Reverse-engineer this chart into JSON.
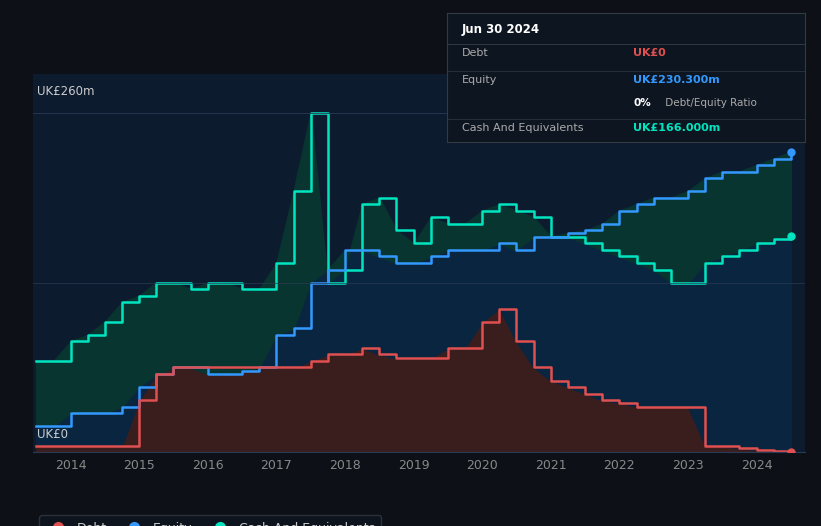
{
  "bg_color": "#0d1117",
  "plot_bg_color": "#0d1b2e",
  "grid_color": "#1e3050",
  "ylabel_top": "UK£260m",
  "ylabel_bottom": "UK£0",
  "xlabel_years": [
    2014,
    2015,
    2016,
    2017,
    2018,
    2019,
    2020,
    2021,
    2022,
    2023,
    2024
  ],
  "debt_color": "#e05050",
  "equity_color": "#3399ff",
  "cash_color": "#00e5c0",
  "debt_fill": "#3a1e1e",
  "equity_fill": "#0a2540",
  "cash_fill": "#083530",
  "tooltip": {
    "date": "Jun 30 2024",
    "debt_label": "Debt",
    "debt_value": "UK£0",
    "debt_color": "#e05050",
    "equity_label": "Equity",
    "equity_value": "UK£230.300m",
    "equity_color": "#3399ff",
    "ratio_text": "0%",
    "ratio_label": " Debt/Equity Ratio",
    "cash_label": "Cash And Equivalents",
    "cash_value": "UK£166.000m",
    "cash_color": "#00e5c0",
    "bg": "#0d1520",
    "border": "#333a44",
    "text_color": "#aaaaaa"
  },
  "legend": {
    "debt_label": "Debt",
    "equity_label": "Equity",
    "cash_label": "Cash And Equivalents"
  },
  "years": [
    2013.5,
    2013.75,
    2014.0,
    2014.25,
    2014.5,
    2014.75,
    2015.0,
    2015.25,
    2015.5,
    2015.75,
    2016.0,
    2016.25,
    2016.5,
    2016.75,
    2017.0,
    2017.25,
    2017.5,
    2017.75,
    2018.0,
    2018.25,
    2018.5,
    2018.75,
    2019.0,
    2019.25,
    2019.5,
    2019.75,
    2020.0,
    2020.25,
    2020.5,
    2020.75,
    2021.0,
    2021.25,
    2021.5,
    2021.75,
    2022.0,
    2022.25,
    2022.5,
    2022.75,
    2023.0,
    2023.25,
    2023.5,
    2023.75,
    2024.0,
    2024.25,
    2024.5
  ],
  "debt": [
    5,
    5,
    5,
    5,
    5,
    5,
    40,
    60,
    65,
    65,
    65,
    65,
    65,
    65,
    65,
    65,
    70,
    75,
    75,
    80,
    75,
    72,
    72,
    72,
    80,
    80,
    100,
    110,
    85,
    65,
    55,
    50,
    45,
    40,
    38,
    35,
    35,
    35,
    35,
    5,
    5,
    3,
    2,
    1,
    0
  ],
  "equity": [
    20,
    20,
    30,
    30,
    30,
    35,
    50,
    60,
    65,
    65,
    60,
    60,
    62,
    65,
    90,
    95,
    130,
    140,
    155,
    155,
    150,
    145,
    145,
    150,
    155,
    155,
    155,
    160,
    155,
    165,
    165,
    168,
    170,
    175,
    185,
    190,
    195,
    195,
    200,
    210,
    215,
    215,
    220,
    225,
    230
  ],
  "cash": [
    70,
    70,
    85,
    90,
    100,
    115,
    120,
    130,
    130,
    125,
    130,
    130,
    125,
    125,
    145,
    200,
    260,
    130,
    140,
    190,
    195,
    170,
    160,
    180,
    175,
    175,
    185,
    190,
    185,
    180,
    165,
    165,
    160,
    155,
    150,
    145,
    140,
    130,
    130,
    145,
    150,
    155,
    160,
    163,
    166
  ],
  "xlim": [
    2013.45,
    2024.7
  ],
  "ylim": [
    0,
    290
  ]
}
